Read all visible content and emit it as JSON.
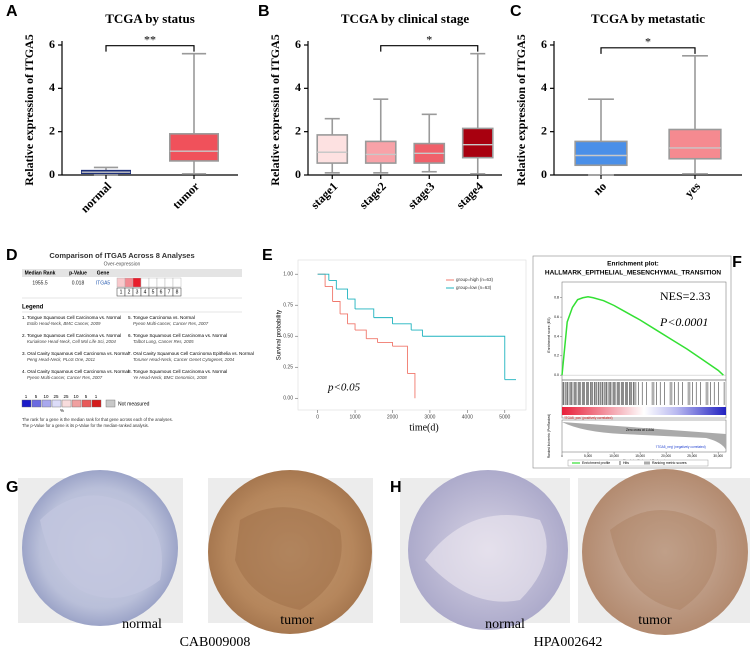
{
  "chart_data": [
    {
      "type": "box",
      "label": "A",
      "title": "TCGA by status",
      "ylabel": "Relative expression of ITGA5",
      "categories": [
        "normal",
        "tumor"
      ],
      "boxes": [
        {
          "min": 0.02,
          "q1": 0.08,
          "median": 0.13,
          "q3": 0.2,
          "max": 0.35,
          "color": "#1c2f7a"
        },
        {
          "min": 0.05,
          "q1": 0.65,
          "median": 1.1,
          "q3": 1.9,
          "max": 5.6,
          "color": "#f0515b"
        }
      ],
      "ylim": [
        0,
        6
      ],
      "yticks": [
        0,
        2,
        4,
        6
      ],
      "bracket": {
        "between": [
          "normal",
          "tumor"
        ],
        "label": "**"
      }
    },
    {
      "type": "box",
      "label": "B",
      "title": "TCGA by clinical stage",
      "ylabel": "Relative expression of ITGA5",
      "categories": [
        "stage1",
        "stage2",
        "stage3",
        "stage4"
      ],
      "boxes": [
        {
          "min": 0.1,
          "q1": 0.55,
          "median": 1.05,
          "q3": 1.85,
          "max": 2.6,
          "color": "#fde1e1"
        },
        {
          "min": 0.1,
          "q1": 0.55,
          "median": 0.95,
          "q3": 1.55,
          "max": 3.5,
          "color": "#f8a2a8"
        },
        {
          "min": 0.15,
          "q1": 0.55,
          "median": 1.0,
          "q3": 1.45,
          "max": 2.8,
          "color": "#f0606a"
        },
        {
          "min": 0.05,
          "q1": 0.8,
          "median": 1.4,
          "q3": 2.15,
          "max": 5.6,
          "color": "#a8000f"
        }
      ],
      "ylim": [
        0,
        6
      ],
      "yticks": [
        0,
        2,
        4,
        6
      ],
      "bracket": {
        "between": [
          "stage2",
          "stage4"
        ],
        "label": "*"
      }
    },
    {
      "type": "box",
      "label": "C",
      "title": "TCGA by metastatic",
      "ylabel": "Relative expression of ITGA5",
      "categories": [
        "no",
        "yes"
      ],
      "boxes": [
        {
          "min": 0.0,
          "q1": 0.45,
          "median": 0.9,
          "q3": 1.55,
          "max": 3.5,
          "color": "#4a8fe8"
        },
        {
          "min": 0.05,
          "q1": 0.75,
          "median": 1.25,
          "q3": 2.1,
          "max": 5.5,
          "color": "#f58a90"
        }
      ],
      "ylim": [
        0,
        6
      ],
      "yticks": [
        0,
        2,
        4,
        6
      ],
      "bracket": {
        "between": [
          "no",
          "yes"
        ],
        "label": "*"
      }
    },
    {
      "type": "step",
      "label": "E",
      "xlabel": "time(d)",
      "ylabel": "Survival probability",
      "annotation": "p<0.05",
      "legend": "top-right",
      "series": [
        {
          "name": "group=high (n=63)",
          "color": "#f0786c",
          "x": [
            0,
            200,
            400,
            600,
            800,
            1000,
            1300,
            1600,
            2000,
            2400,
            2600
          ],
          "values": [
            1,
            0.9,
            0.78,
            0.68,
            0.6,
            0.55,
            0.48,
            0.45,
            0.42,
            0.2,
            0
          ]
        },
        {
          "name": "group=low (n=63)",
          "color": "#1fb3bf",
          "x": [
            0,
            300,
            500,
            800,
            1000,
            1500,
            2000,
            2500,
            2800,
            4500,
            5000,
            5300
          ],
          "values": [
            1,
            0.95,
            0.88,
            0.8,
            0.72,
            0.65,
            0.6,
            0.55,
            0.5,
            0.5,
            0.15,
            0.15
          ]
        }
      ],
      "xlim": [
        -150,
        5300
      ],
      "xticks": [
        0,
        1000,
        2000,
        3000,
        4000,
        5000
      ],
      "ylim": [
        -0.03,
        1.05
      ],
      "yticks": [
        {
          "value": 0,
          "label": "0.00"
        },
        {
          "value": 0.25,
          "label": "0.25"
        },
        {
          "value": 0.5,
          "label": "0.50"
        },
        {
          "value": 0.75,
          "label": "0.75"
        },
        {
          "value": 1,
          "label": "1.00"
        }
      ]
    },
    {
      "type": "line",
      "label": "F",
      "title": "Enrichment plot:",
      "subtitle": "HALLMARK_EPITHELIAL_MESENCHYMAL_TRANSITION",
      "nes": "NES=2.33",
      "p_value": "P<0.0001",
      "ylabel": "Enrichment score (ES)",
      "ylabel_lower": "Ranked list metric (PreRanked)",
      "xlabel": "Rank in Ordered Dataset",
      "pos_label": "'ITGA5_pos' (positively correlated)",
      "neg_label": "'ITGA5_neg' (negatively correlated)",
      "zero_cross": "Zero cross at 11536",
      "series": [
        {
          "name": "Enrichment profile",
          "color": "#33e033",
          "x": [
            0,
            1000,
            2000,
            3000,
            4000,
            5000,
            6000,
            8000,
            10000,
            12000,
            15000,
            18000,
            21000,
            24000,
            27000,
            30000,
            31000
          ],
          "values": [
            0,
            0.55,
            0.7,
            0.78,
            0.8,
            0.81,
            0.8,
            0.77,
            0.72,
            0.66,
            0.57,
            0.47,
            0.37,
            0.27,
            0.16,
            0.05,
            0
          ]
        }
      ],
      "extra_legend": [
        "Hits",
        "Ranking metric scores"
      ],
      "xlim": [
        0,
        31500
      ],
      "xticks": [
        0,
        {
          "value": 5000,
          "label": "5,000"
        },
        {
          "value": 10000,
          "label": "10,000"
        },
        {
          "value": 15000,
          "label": "15,000"
        },
        {
          "value": 20000,
          "label": "20,000"
        },
        {
          "value": 25000,
          "label": "25,000"
        },
        {
          "value": 30000,
          "label": "30,000"
        }
      ],
      "ylim": [
        -0.05,
        0.88
      ],
      "yticks": [
        {
          "value": 0,
          "label": "0.0"
        },
        0.2,
        0.4,
        0.6,
        0.8
      ]
    }
  ],
  "panel_d": {
    "label": "D",
    "title": "Comparison of ITGA5 Across 8 Analyses",
    "subtitle": "Over-expression",
    "headers": [
      "Median Rank",
      "p-Value",
      "Gene"
    ],
    "row": [
      "1955.5",
      "0.018",
      "ITGA5"
    ],
    "ranks": [
      "1",
      "2",
      "3",
      "4",
      "5",
      "6",
      "7",
      "8"
    ],
    "rank_colors": [
      "#f8c9cc",
      "#f28a92",
      "#e81c2a",
      "#ffffff",
      "#ffffff",
      "#ffffff",
      "#ffffff",
      "#ffffff"
    ],
    "legend_title": "Legend",
    "legend_items": [
      {
        "name": "1. Tongue Squamous Cell Carcinoma vs. Normal",
        "source": "Estilo Head-Neck, BMC Cancer, 2009"
      },
      {
        "name": "2. Tongue Squamous Cell Carcinoma vs. Normal",
        "source": "Kuriakose Head-Neck, Cell Mol Life Sci, 2004"
      },
      {
        "name": "3. Oral Cavity Squamous Cell Carcinoma vs. Normal",
        "source": "Peng Head-Neck, PLoS One, 2011"
      },
      {
        "name": "4. Oral Cavity Squamous Cell Carcinoma vs. Normal",
        "source": "Pyeon Multi-cancer, Cancer Res, 2007"
      },
      {
        "name": "5. Tongue Carcinoma vs. Normal",
        "source": "Pyeon Multi-cancer, Cancer Res, 2007"
      },
      {
        "name": "6. Tongue Squamous Cell Carcinoma vs. Normal",
        "source": "Talbot Lung, Cancer Res, 2005"
      },
      {
        "name": "7. Oral Cavity Squamous Cell Carcinoma Epithelia vs. Normal",
        "source": "Toruner Head-Neck, Cancer Genet Cytogenet, 2004"
      },
      {
        "name": "8. Tongue Squamous Cell Carcinoma vs. Normal",
        "source": "Ye Head-Neck, BMC Genomics, 2008"
      }
    ],
    "scale_labels": [
      "1",
      "5",
      "10",
      "25",
      "25",
      "10",
      "5",
      "1"
    ],
    "scale_colors": [
      "#1c1cc8",
      "#6a6ae0",
      "#a8a8ee",
      "#dcdcf8",
      "#f8dcdc",
      "#f0a0a0",
      "#e85a5a",
      "#d41c1c"
    ],
    "scale_unit": "%",
    "not_measured": "Not measured",
    "footnote": [
      "The rank for a gene is the median rank for that gene across each of the analyses.",
      "The p-Value for a gene is its p-Value for the median-ranked analysis."
    ]
  },
  "panel_g": {
    "label": "G",
    "images": [
      "normal",
      "tumor"
    ],
    "antibody": "CAB009008"
  },
  "panel_h": {
    "label": "H",
    "images": [
      "normal",
      "tumor"
    ],
    "antibody": "HPA002642"
  }
}
